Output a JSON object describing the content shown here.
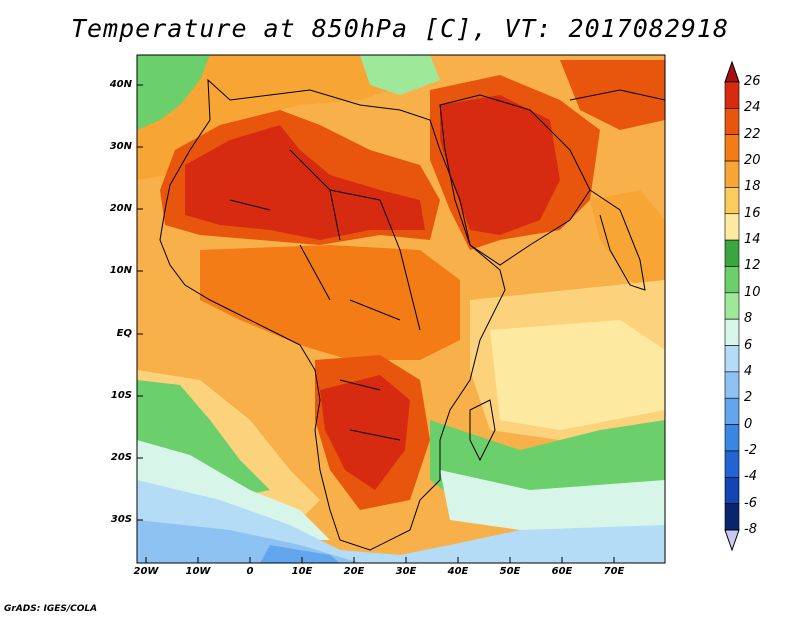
{
  "title": "Temperature at 850hPa [C], VT: 2017082918",
  "credit": "GrADS: IGES/COLA",
  "lat_labels": [
    "40N",
    "30N",
    "20N",
    "10N",
    "EQ",
    "10S",
    "20S",
    "30S"
  ],
  "lon_labels": [
    "20W",
    "10W",
    "0",
    "10E",
    "20E",
    "30E",
    "40E",
    "50E",
    "60E",
    "70E"
  ],
  "colorbar": {
    "labels": [
      "26",
      "24",
      "22",
      "20",
      "18",
      "16",
      "14",
      "12",
      "10",
      "8",
      "6",
      "4",
      "2",
      "0",
      "-2",
      "-4",
      "-6",
      "-8"
    ],
    "colors": [
      "#a50f15",
      "#d62b10",
      "#e8560e",
      "#f47c16",
      "#f7a534",
      "#fbcb5e",
      "#fdeaa0",
      "#3aa63f",
      "#6bd06b",
      "#9ee89a",
      "#d8f5ea",
      "#b5dcf6",
      "#8ec2f2",
      "#62a6ee",
      "#3a86e3",
      "#2164d2",
      "#1345b4",
      "#08256e",
      "#c9c9f2"
    ]
  },
  "map": {
    "ocean_colors": {
      "warm": "#f8b14a",
      "mid": "#fcd37c",
      "cool": "#fdeaa0",
      "green": "#6bd06b",
      "teal": "#d8f5ea",
      "blue": "#8ec2f2"
    },
    "land_colors": {
      "hot": "#d62b10",
      "warm": "#e8560e",
      "orange": "#f47c16",
      "light": "#f7a534"
    }
  }
}
